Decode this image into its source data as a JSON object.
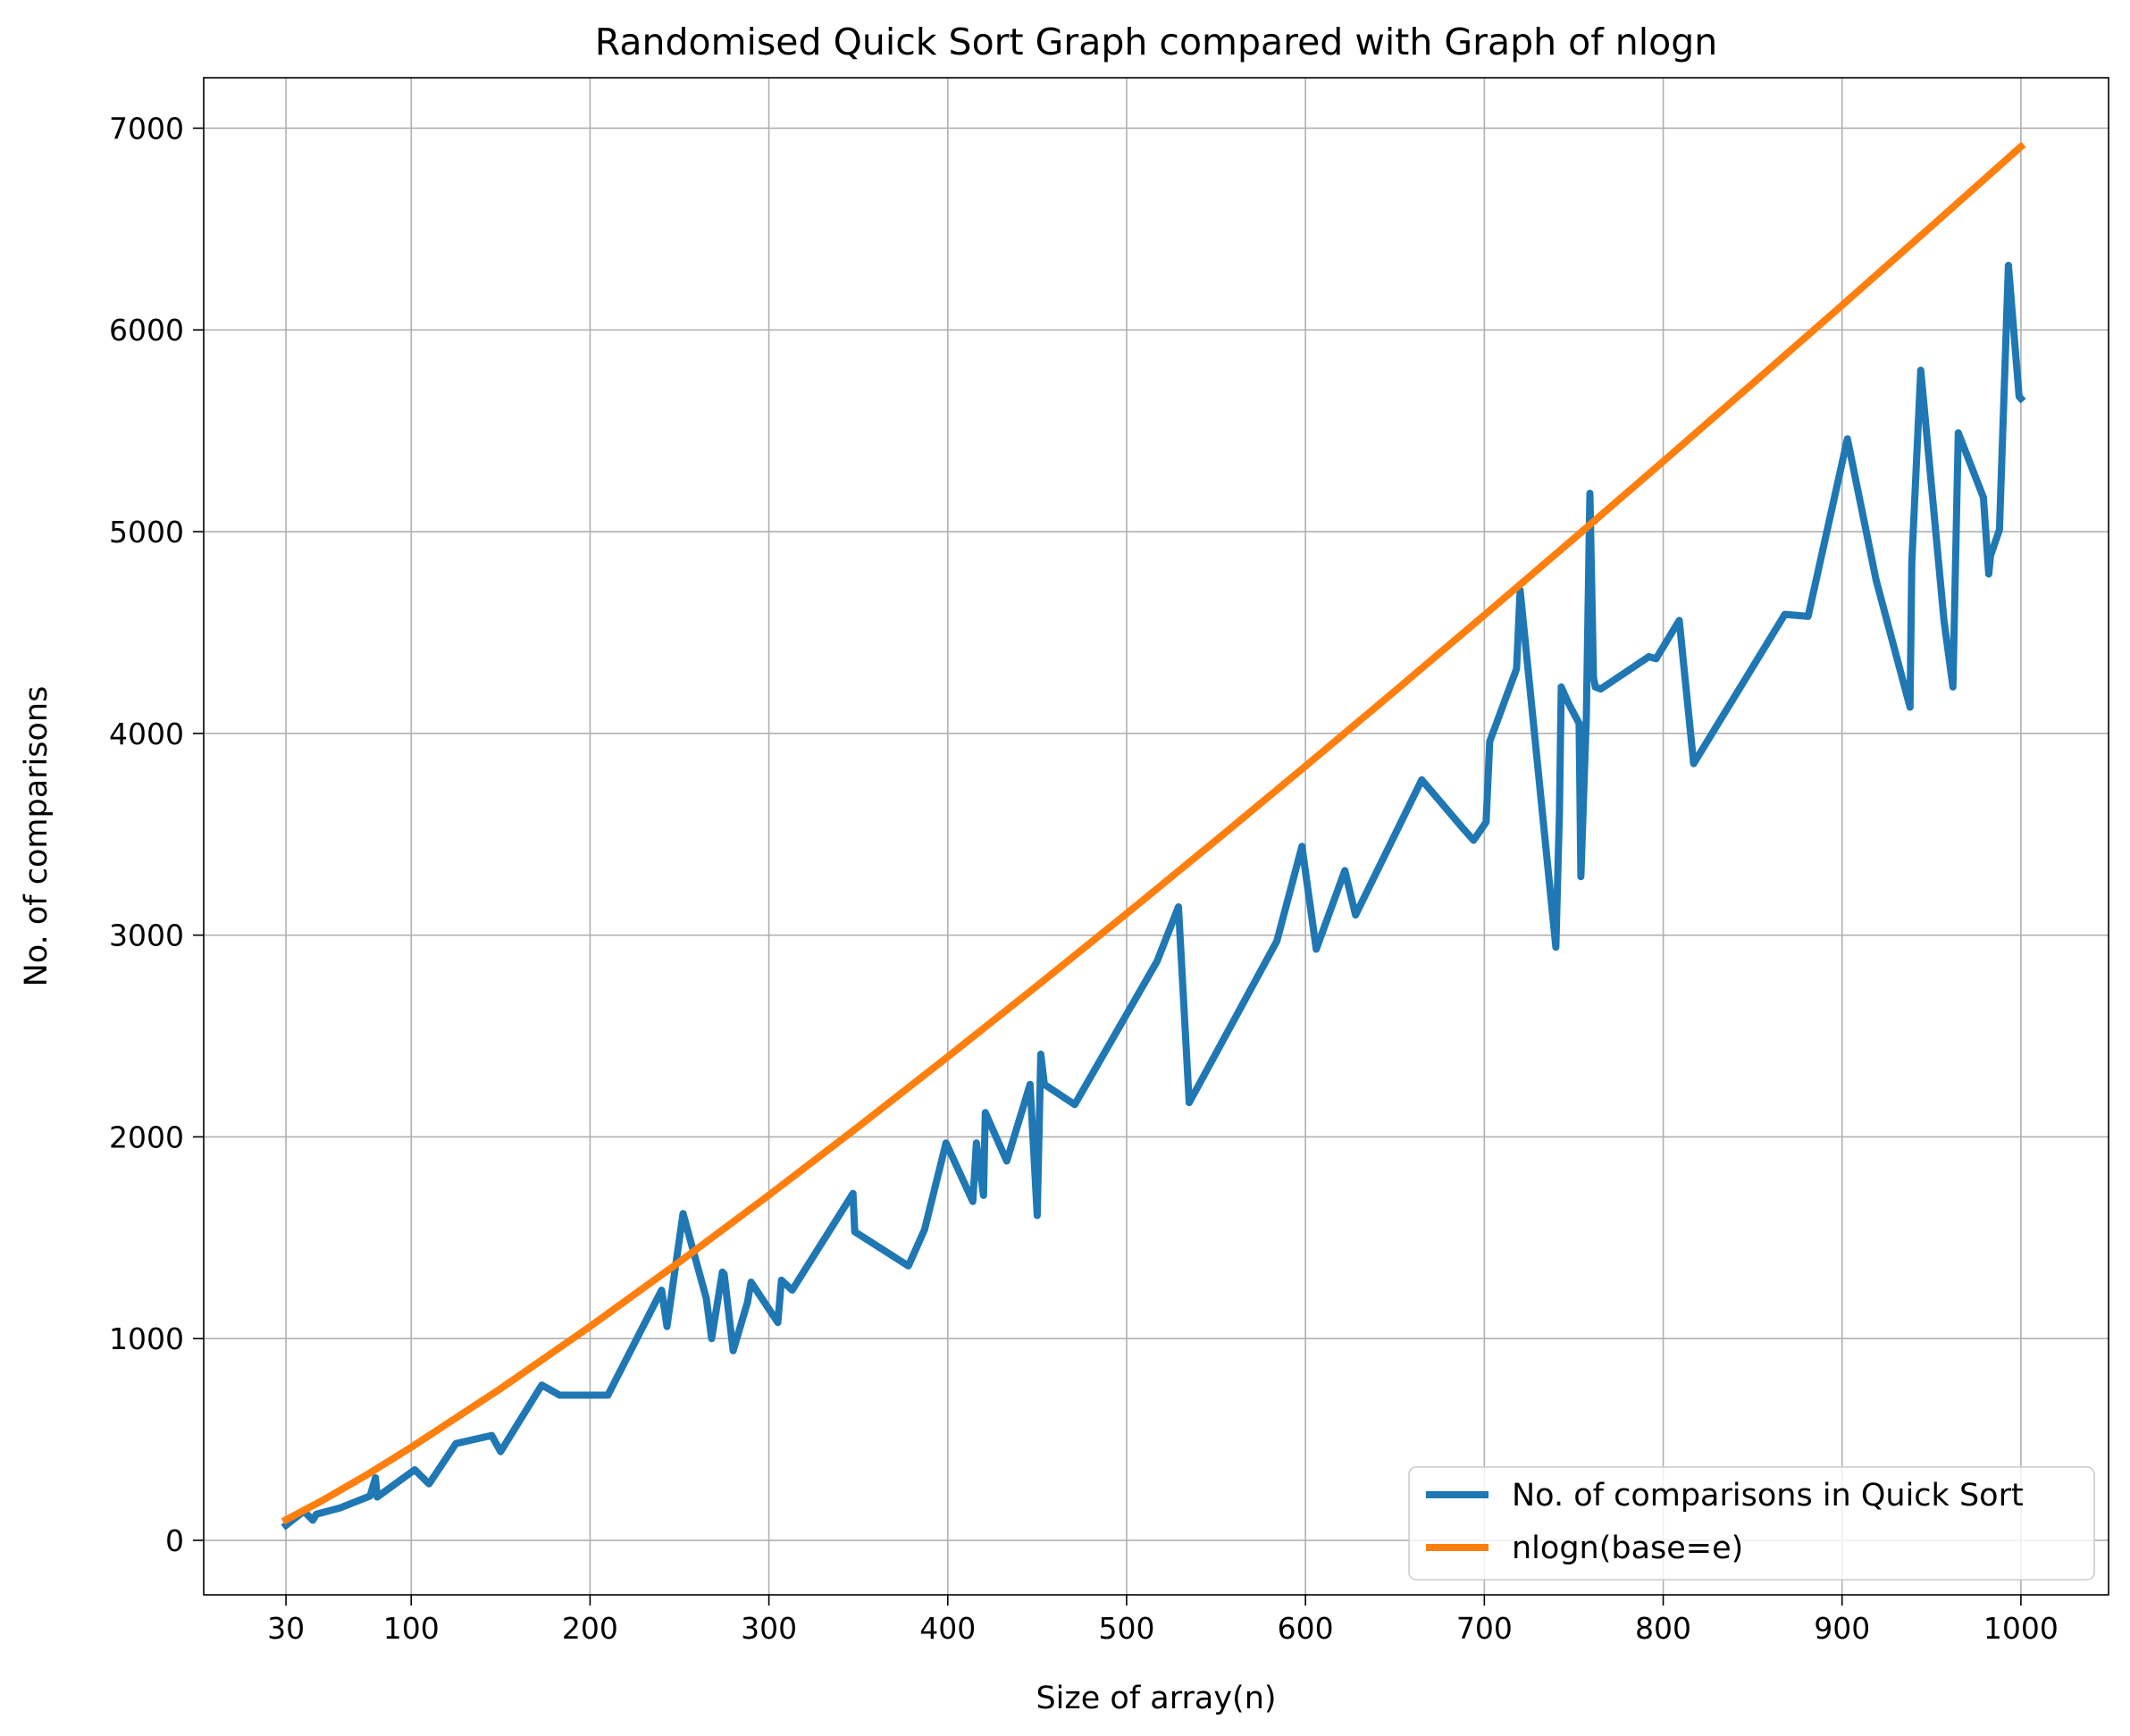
{
  "chart_data": {
    "type": "line",
    "title": "Randomised Quick Sort Graph compared with Graph of nlogn",
    "xlabel": "Size of array(n)",
    "ylabel": "No. of comparisons",
    "xlim": [
      -16,
      1049
    ],
    "ylim": [
      -270,
      7250
    ],
    "xticks": [
      30,
      100,
      200,
      300,
      400,
      500,
      600,
      700,
      800,
      900,
      1000
    ],
    "xtick_labels": [
      "30",
      "100",
      "200",
      "300",
      "400",
      "500",
      "600",
      "700",
      "800",
      "900",
      "1000"
    ],
    "yticks": [
      0,
      1000,
      2000,
      3000,
      4000,
      5000,
      6000,
      7000
    ],
    "ytick_labels": [
      "0",
      "1000",
      "2000",
      "3000",
      "4000",
      "5000",
      "6000",
      "7000"
    ],
    "grid": true,
    "legend_position": "lower-right",
    "series": [
      {
        "name": "No. of comparisons in Quick Sort",
        "color": "#1f77b4",
        "x": [
          30,
          40,
          45,
          47,
          60,
          77,
          80,
          81,
          102,
          110,
          125,
          145,
          150,
          173,
          183,
          210,
          240,
          243,
          252,
          265,
          268,
          274,
          275,
          280,
          288,
          290,
          305,
          307,
          313,
          347,
          348,
          378,
          387,
          399,
          414,
          416,
          420,
          421,
          433,
          446,
          450,
          452,
          454,
          471,
          517,
          529,
          535,
          584,
          598,
          606,
          622,
          628,
          665,
          688,
          694,
          701,
          703,
          718,
          720,
          740,
          742,
          743,
          747,
          753,
          754,
          757,
          759,
          761,
          762,
          765,
          792,
          796,
          809,
          817,
          868,
          881,
          903,
          919,
          938,
          939,
          944,
          957,
          962,
          965,
          979,
          982,
          983,
          988,
          993,
          999,
          1000
        ],
        "y": [
          75,
          145,
          100,
          130,
          160,
          220,
          310,
          215,
          350,
          280,
          480,
          520,
          440,
          770,
          720,
          720,
          1240,
          1060,
          1620,
          1200,
          1000,
          1330,
          1320,
          940,
          1180,
          1280,
          1080,
          1290,
          1240,
          1720,
          1530,
          1360,
          1540,
          1970,
          1680,
          1970,
          1710,
          2120,
          1880,
          2260,
          1610,
          2410,
          2260,
          2160,
          2870,
          3140,
          2170,
          2970,
          3440,
          2930,
          3320,
          3100,
          3770,
          3530,
          3470,
          3560,
          3960,
          4320,
          4710,
          2940,
          3610,
          4230,
          4150,
          4050,
          3290,
          4080,
          5190,
          4280,
          4230,
          4220,
          4380,
          4370,
          4560,
          3850,
          4590,
          4580,
          5460,
          4760,
          4130,
          4850,
          5800,
          4560,
          4230,
          5490,
          5170,
          4790,
          4880,
          5010,
          6320,
          5670,
          5660
        ]
      },
      {
        "name": "nlogn(base=e)",
        "color": "#ff7f0e",
        "x": [
          30,
          50,
          75,
          100,
          150,
          200,
          250,
          300,
          350,
          400,
          450,
          500,
          550,
          600,
          650,
          700,
          750,
          800,
          850,
          900,
          950,
          1000
        ],
        "y": [
          102,
          196,
          324,
          461,
          752,
          1060,
          1380,
          1711,
          2050,
          2397,
          2749,
          3107,
          3470,
          3838,
          4210,
          4586,
          4965,
          5348,
          5734,
          6122,
          6514,
          6908
        ]
      }
    ]
  }
}
